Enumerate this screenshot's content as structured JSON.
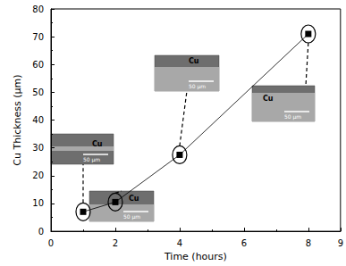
{
  "chart_data": {
    "type": "line",
    "x_label": "Time (hours)",
    "y_label": "Cu Thickness (μm)",
    "x": [
      1,
      2,
      4,
      8
    ],
    "values": [
      7,
      10.5,
      27.5,
      71
    ],
    "color": "#000000",
    "marker": "square",
    "xlim": [
      0,
      9
    ],
    "xticks": [
      0,
      2,
      4,
      6,
      8
    ],
    "ylim": [
      0,
      80
    ],
    "yticks": [
      0,
      10,
      20,
      30,
      40,
      50,
      60,
      70,
      80
    ],
    "grid": false,
    "insets": [
      {
        "label": "Cu",
        "scale_bar": "50 μm"
      },
      {
        "label": "Cu",
        "scale_bar": "50 μm"
      },
      {
        "label": "Cu",
        "scale_bar": "50 μm"
      },
      {
        "label": "Cu",
        "scale_bar": "50 μm"
      }
    ]
  }
}
